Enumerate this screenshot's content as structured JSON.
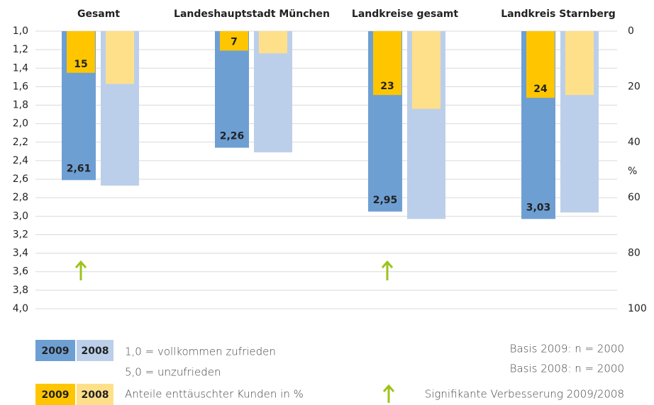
{
  "chart_data": {
    "type": "bar",
    "categories": [
      "Gesamt",
      "Landeshauptstadt München",
      "Landkreise gesamt",
      "Landkreis Starnberg"
    ],
    "series": [
      {
        "name": "2009",
        "color": "#6e9fd3",
        "axis": "y",
        "values": [
          2.61,
          2.26,
          2.95,
          3.03
        ],
        "value_labels": [
          "2,61",
          "2,26",
          "2,95",
          "3,03"
        ]
      },
      {
        "name": "2008",
        "color": "#bccfea",
        "axis": "y",
        "values": [
          2.67,
          2.31,
          3.03,
          2.96
        ]
      },
      {
        "name": "2009",
        "color": "#ffc600",
        "axis": "y2",
        "values": [
          15,
          7,
          23,
          24
        ]
      },
      {
        "name": "2008",
        "color": "#ffe08a",
        "axis": "y2",
        "values": [
          19,
          8,
          28,
          23
        ]
      }
    ],
    "ylim": [
      1,
      4
    ],
    "y_inverted": true,
    "yticks": [
      {
        "value": 1,
        "label": "1,0"
      },
      {
        "value": 1.2,
        "label": "1,2"
      },
      {
        "value": 1.4,
        "label": "1,4"
      },
      {
        "value": 1.6,
        "label": "1,6"
      },
      {
        "value": 1.8,
        "label": "1,8"
      },
      {
        "value": 2,
        "label": "2,0"
      },
      {
        "value": 2.2,
        "label": "2,2"
      },
      {
        "value": 2.4,
        "label": "2,4"
      },
      {
        "value": 2.6,
        "label": "2,6"
      },
      {
        "value": 2.8,
        "label": "2,8"
      },
      {
        "value": 3,
        "label": "3,0"
      },
      {
        "value": 3.2,
        "label": "3,2"
      },
      {
        "value": 3.4,
        "label": "3,4"
      },
      {
        "value": 3.6,
        "label": "3,6"
      },
      {
        "value": 3.8,
        "label": "3,8"
      },
      {
        "value": 4,
        "label": "4,0"
      }
    ],
    "y2lim": [
      0,
      100
    ],
    "y2ticks": [
      0,
      20,
      40,
      60,
      80,
      100
    ],
    "y2label": "%",
    "grid": true,
    "significant": [
      true,
      false,
      true,
      false
    ],
    "legend_scale_top": "1,0 = vollkommen zufrieden",
    "legend_scale_bottom": "5,0 = unzufrieden",
    "legend_share": "Anteile enttäuschter Kunden in %",
    "basis_2009": "Basis 2009: n = 2000",
    "basis_2008": "Basis 2008: n = 2000",
    "legend_arrow": "Signifikante Verbesserung 2009/2008"
  }
}
